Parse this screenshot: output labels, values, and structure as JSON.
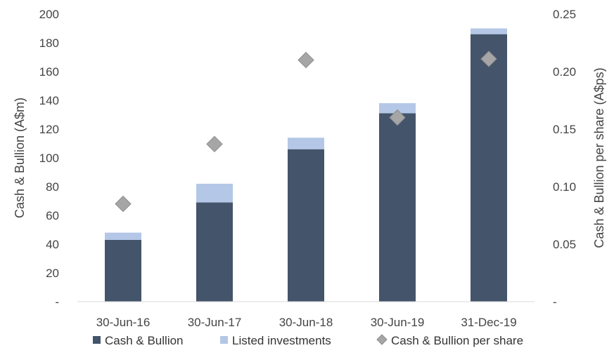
{
  "chart_data": {
    "type": "bar",
    "stacked": true,
    "categories": [
      "30-Jun-16",
      "30-Jun-17",
      "30-Jun-18",
      "30-Jun-19",
      "31-Dec-19"
    ],
    "series": [
      {
        "name": "Cash & Bullion",
        "type": "bar",
        "axis": "left",
        "color": "#44546a",
        "values": [
          43,
          69,
          106,
          131,
          186
        ]
      },
      {
        "name": "Listed investments",
        "type": "bar",
        "axis": "left",
        "color": "#b4c7e7",
        "values": [
          5,
          13,
          8,
          7,
          4
        ]
      },
      {
        "name": "Cash & Bullion per share",
        "type": "scatter",
        "marker": "diamond",
        "axis": "right",
        "color": "#a6a6a6",
        "values": [
          0.085,
          0.137,
          0.21,
          0.16,
          0.211
        ]
      }
    ],
    "ylabel": "Cash & Bullion (A$m)",
    "y2label": "Cash & Bullion per share (A$ps)",
    "ylim": [
      0,
      200
    ],
    "y2lim": [
      0,
      0.25
    ],
    "yticks": [
      "-",
      "20",
      "40",
      "60",
      "80",
      "100",
      "120",
      "140",
      "160",
      "180",
      "200"
    ],
    "y2ticks": [
      "-",
      "0.05",
      "0.10",
      "0.15",
      "0.20",
      "0.25"
    ],
    "grid": false,
    "legend_position": "bottom"
  }
}
